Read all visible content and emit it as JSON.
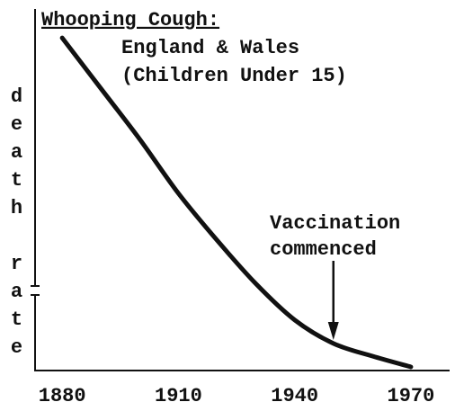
{
  "chart_data": {
    "type": "line",
    "title": "Whooping Cough:",
    "subtitle": [
      "England & Wales",
      "(Children Under 15)"
    ],
    "y_label": "death rate",
    "annotation": [
      "Vaccination",
      "commenced"
    ],
    "annotation_x": 1950,
    "x": [
      1880,
      1890,
      1900,
      1910,
      1920,
      1930,
      1940,
      1950,
      1960,
      1970
    ],
    "series": [
      {
        "color": "#111111",
        "values": [
          92,
          78,
          64,
          49,
          36,
          24,
          14,
          7.5,
          4,
          1
        ]
      }
    ],
    "xlim": [
      1873,
      1980
    ],
    "xticks": [
      1880,
      1910,
      1940,
      1970
    ],
    "ylim": [
      0,
      100
    ]
  }
}
